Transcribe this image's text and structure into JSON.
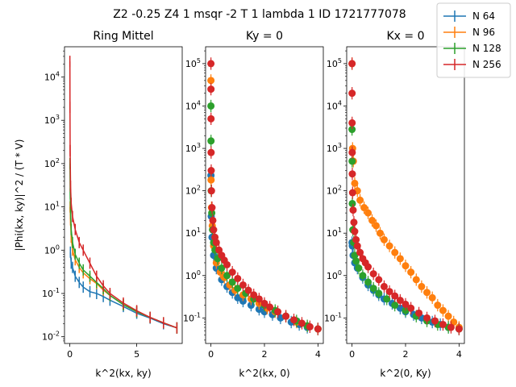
{
  "suptitle": "Z2 -0.25 Z4 1 msqr -2 T 1 lambda 1 ID 1721777078",
  "colors": {
    "N 64": "#1f77b4",
    "N 96": "#ff7f0e",
    "N 128": "#2ca02c",
    "N 256": "#d62728"
  },
  "legend": {
    "placement": "top-right",
    "entries": [
      "N 64",
      "N 96",
      "N 128",
      "N 256"
    ]
  },
  "chart_data": [
    {
      "type": "line",
      "title": "Ring Mittel",
      "xlabel": "k^2(kx, ky)",
      "ylabel": "|Phi(kx, ky)|^2 / (T * V)",
      "yscale": "log",
      "xlim": [
        -0.4,
        8.4
      ],
      "ylim": [
        0.007,
        50000
      ],
      "xticks": [
        0,
        5
      ],
      "yticks": [
        0.01,
        0.1,
        1,
        10,
        100,
        1000,
        10000
      ],
      "ytick_labels": [
        "10^-2",
        "10^-1",
        "10^0",
        "10^1",
        "10^2",
        "10^3",
        "10^4"
      ],
      "series": [
        {
          "name": "N 64",
          "x": [
            0.04,
            0.1,
            0.2,
            0.4,
            0.7,
            1.0,
            1.5,
            2.0,
            2.5,
            3.0,
            4.0,
            5.0,
            6.0,
            7.0,
            8.0
          ],
          "y": [
            0.9,
            0.5,
            0.4,
            0.25,
            0.18,
            0.14,
            0.11,
            0.1,
            0.085,
            0.07,
            0.05,
            0.035,
            0.027,
            0.02,
            0.016
          ]
        },
        {
          "name": "N 96",
          "x": [
            0.02,
            0.05,
            0.1,
            0.2,
            0.4,
            0.7,
            1.0,
            1.5,
            2.0,
            2.5,
            3.0,
            4.0,
            5.0,
            6.0,
            7.0,
            8.0
          ],
          "y": [
            10,
            5,
            2,
            1.0,
            0.6,
            0.4,
            0.3,
            0.22,
            0.17,
            0.12,
            0.09,
            0.055,
            0.038,
            0.028,
            0.021,
            0.016
          ]
        },
        {
          "name": "N 128",
          "x": [
            0.01,
            0.03,
            0.06,
            0.1,
            0.2,
            0.4,
            0.7,
            1.0,
            1.5,
            2.0,
            2.5,
            3.0,
            4.0,
            5.0,
            6.0,
            7.0,
            8.0
          ],
          "y": [
            100,
            20,
            7,
            3,
            1.5,
            0.8,
            0.5,
            0.35,
            0.25,
            0.18,
            0.13,
            0.09,
            0.055,
            0.038,
            0.028,
            0.021,
            0.016
          ]
        },
        {
          "name": "N 256",
          "x": [
            0.002,
            0.01,
            0.02,
            0.05,
            0.1,
            0.2,
            0.4,
            0.7,
            1.0,
            1.5,
            2.0,
            2.5,
            3.0,
            4.0,
            5.0,
            6.0,
            7.0,
            8.0
          ],
          "y": [
            23000,
            2000,
            200,
            30,
            12,
            6,
            3,
            1.5,
            1.0,
            0.5,
            0.25,
            0.15,
            0.1,
            0.06,
            0.04,
            0.028,
            0.021,
            0.016
          ]
        }
      ]
    },
    {
      "type": "scatter",
      "title": "Ky = 0",
      "xlabel": "k^2(kx, 0)",
      "yscale": "log",
      "xlim": [
        -0.2,
        4.2
      ],
      "ylim": [
        0.025,
        250000
      ],
      "xticks": [
        0,
        2,
        4
      ],
      "yticks": [
        0.1,
        1,
        10,
        100,
        1000,
        10000,
        100000
      ],
      "ytick_labels": [
        "10^-1",
        "10^0",
        "10^1",
        "10^2",
        "10^3",
        "10^4",
        "10^5"
      ],
      "series": [
        {
          "name": "N 64",
          "x": [
            0.0,
            0.01,
            0.04,
            0.1,
            0.2,
            0.4,
            0.6,
            0.8,
            1.0,
            1.2,
            1.5,
            1.8,
            2.0,
            2.3,
            2.6,
            3.0,
            3.3,
            3.6,
            4.0
          ],
          "y": [
            230,
            25,
            8,
            3,
            1.5,
            0.8,
            0.55,
            0.4,
            0.3,
            0.25,
            0.2,
            0.16,
            0.14,
            0.12,
            0.1,
            0.08,
            0.07,
            0.06,
            0.055
          ]
        },
        {
          "name": "N 96",
          "x": [
            0.0,
            0.005,
            0.02,
            0.05,
            0.1,
            0.2,
            0.35,
            0.5,
            0.7,
            0.9,
            1.2,
            1.5,
            1.8,
            2.1,
            2.4,
            2.8,
            3.2,
            3.6,
            4.0
          ],
          "y": [
            40000,
            180,
            40,
            15,
            5,
            2,
            1.2,
            0.9,
            0.6,
            0.45,
            0.35,
            0.28,
            0.22,
            0.17,
            0.14,
            0.11,
            0.08,
            0.065,
            0.055
          ]
        },
        {
          "name": "N 128",
          "x": [
            0.0,
            0.003,
            0.01,
            0.03,
            0.06,
            0.1,
            0.15,
            0.25,
            0.4,
            0.6,
            0.8,
            1.0,
            1.3,
            1.6,
            2.0,
            2.4,
            2.8,
            3.2,
            3.6,
            4.0
          ],
          "y": [
            10000,
            1500,
            100,
            30,
            12,
            6,
            4,
            2.5,
            1.5,
            1.0,
            0.7,
            0.5,
            0.38,
            0.28,
            0.2,
            0.15,
            0.11,
            0.085,
            0.065,
            0.055
          ]
        },
        {
          "name": "N 256",
          "x": [
            0.0,
            0.001,
            0.003,
            0.006,
            0.01,
            0.02,
            0.04,
            0.07,
            0.1,
            0.15,
            0.2,
            0.3,
            0.4,
            0.5,
            0.6,
            0.8,
            1.0,
            1.2,
            1.4,
            1.6,
            1.8,
            2.0,
            2.2,
            2.5,
            2.8,
            3.1,
            3.4,
            3.7,
            4.0
          ],
          "y": [
            100000,
            25000,
            5000,
            800,
            300,
            100,
            40,
            20,
            12,
            8,
            6,
            4,
            3,
            2.3,
            1.8,
            1.2,
            0.85,
            0.6,
            0.45,
            0.35,
            0.28,
            0.22,
            0.18,
            0.14,
            0.11,
            0.09,
            0.075,
            0.062,
            0.055
          ]
        }
      ]
    },
    {
      "type": "scatter",
      "title": "Kx = 0",
      "xlabel": "k^2(0, Ky)",
      "yscale": "log",
      "xlim": [
        -0.2,
        4.2
      ],
      "ylim": [
        0.025,
        250000
      ],
      "xticks": [
        0,
        2,
        4
      ],
      "yticks": [
        0.1,
        1,
        10,
        100,
        1000,
        10000,
        100000
      ],
      "ytick_labels": [
        "10^-1",
        "10^0",
        "10^1",
        "10^2",
        "10^3",
        "10^4",
        "10^5"
      ],
      "series": [
        {
          "name": "N 64",
          "x": [
            0.0,
            0.01,
            0.04,
            0.1,
            0.2,
            0.4,
            0.6,
            0.8,
            1.0,
            1.2,
            1.5,
            1.8,
            2.0,
            2.3,
            2.6,
            3.0,
            3.3,
            3.6,
            4.0
          ],
          "y": [
            6,
            5,
            3,
            2,
            1.5,
            0.9,
            0.6,
            0.45,
            0.35,
            0.28,
            0.22,
            0.17,
            0.14,
            0.12,
            0.1,
            0.08,
            0.07,
            0.06,
            0.055
          ]
        },
        {
          "name": "N 96",
          "x": [
            0.0,
            0.02,
            0.05,
            0.1,
            0.2,
            0.3,
            0.45,
            0.6,
            0.75,
            0.9,
            1.05,
            1.2,
            1.4,
            1.6,
            1.8,
            2.0,
            2.2,
            2.4,
            2.6,
            2.8,
            3.0,
            3.2,
            3.4,
            3.6,
            3.8,
            4.0
          ],
          "y": [
            100000,
            1000,
            500,
            150,
            100,
            60,
            40,
            30,
            20,
            15,
            10,
            7,
            5,
            3.5,
            2.5,
            1.7,
            1.2,
            0.8,
            0.55,
            0.4,
            0.3,
            0.2,
            0.15,
            0.11,
            0.08,
            0.06
          ]
        },
        {
          "name": "N 128",
          "x": [
            0.0,
            0.003,
            0.01,
            0.03,
            0.06,
            0.1,
            0.15,
            0.25,
            0.4,
            0.6,
            0.8,
            1.0,
            1.3,
            1.6,
            2.0,
            2.4,
            2.8,
            3.2,
            3.6,
            4.0
          ],
          "y": [
            2800,
            500,
            50,
            12,
            6,
            3,
            2.2,
            1.5,
            1.0,
            0.7,
            0.5,
            0.38,
            0.28,
            0.2,
            0.15,
            0.11,
            0.085,
            0.07,
            0.06,
            0.055
          ]
        },
        {
          "name": "N 256",
          "x": [
            0.0,
            0.001,
            0.003,
            0.006,
            0.01,
            0.02,
            0.04,
            0.07,
            0.1,
            0.15,
            0.2,
            0.3,
            0.4,
            0.5,
            0.6,
            0.8,
            1.0,
            1.2,
            1.4,
            1.6,
            1.8,
            2.0,
            2.2,
            2.5,
            2.8,
            3.1,
            3.4,
            3.7,
            4.0
          ],
          "y": [
            100000,
            20000,
            4000,
            800,
            250,
            90,
            35,
            18,
            11,
            7,
            5,
            3.5,
            2.5,
            2,
            1.6,
            1.1,
            0.8,
            0.55,
            0.42,
            0.33,
            0.26,
            0.21,
            0.17,
            0.13,
            0.1,
            0.085,
            0.07,
            0.06,
            0.055
          ]
        }
      ]
    }
  ]
}
